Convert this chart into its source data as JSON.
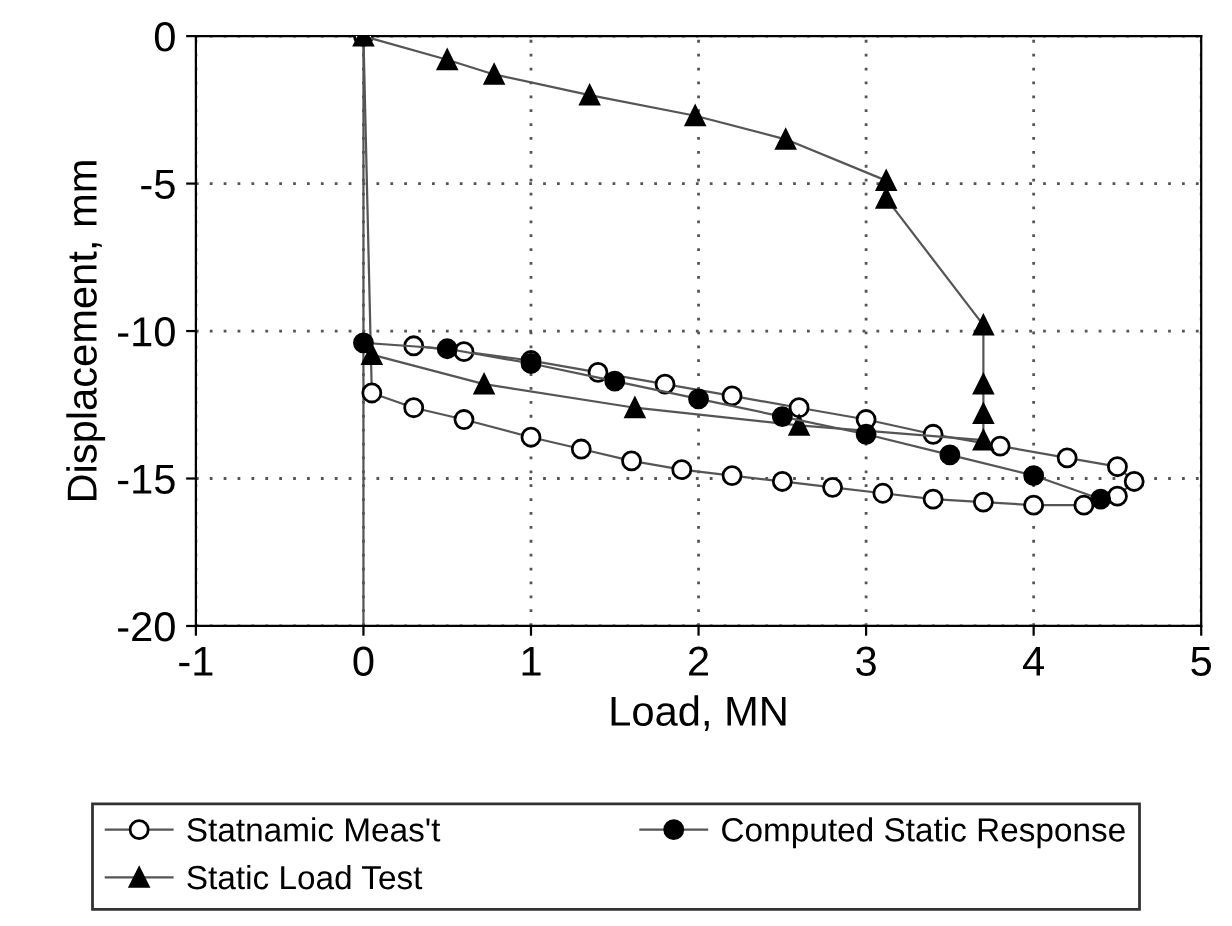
{
  "chart_data": {
    "type": "line",
    "xlabel": "Load, MN",
    "ylabel": "Displacement, mm",
    "xlim": [
      -1,
      5
    ],
    "xticks": [
      -1,
      0,
      1,
      2,
      3,
      4,
      5
    ],
    "ylim": [
      -20,
      0
    ],
    "yticks": [
      -20,
      -15,
      -10,
      -5,
      0
    ],
    "grid": true,
    "legend": "bottom",
    "series": [
      {
        "name": "Statnamic Meas't",
        "color": "#ffffff",
        "marker": "circle",
        "x": [
          0,
          0.05,
          0.3,
          0.6,
          1.0,
          1.3,
          1.6,
          1.9,
          2.2,
          2.5,
          2.8,
          3.1,
          3.4,
          3.7,
          4.0,
          4.3,
          4.5,
          4.6,
          4.5,
          4.2,
          3.8,
          3.4,
          3.0,
          2.6,
          2.2,
          1.8,
          1.4,
          1.0,
          0.6,
          0.3
        ],
        "values": [
          0,
          -12.1,
          -12.6,
          -13.0,
          -13.6,
          -14.0,
          -14.4,
          -14.7,
          -14.9,
          -15.1,
          -15.3,
          -15.5,
          -15.7,
          -15.8,
          -15.9,
          -15.9,
          -15.6,
          -15.1,
          -14.6,
          -14.3,
          -13.9,
          -13.5,
          -13.0,
          -12.6,
          -12.2,
          -11.8,
          -11.4,
          -11.0,
          -10.7,
          -10.5
        ]
      },
      {
        "name": "Static Load Test",
        "color": "#000000",
        "marker": "triangle",
        "x": [
          0,
          0.5,
          0.78,
          1.35,
          1.98,
          2.52,
          3.12,
          3.12,
          3.7,
          3.7,
          3.7,
          3.7,
          2.6,
          1.62,
          0.72,
          0.05
        ],
        "values": [
          0,
          -0.8,
          -1.3,
          -2.0,
          -2.7,
          -3.5,
          -4.9,
          -5.5,
          -9.8,
          -11.8,
          -12.8,
          -13.7,
          -13.2,
          -12.6,
          -11.8,
          -10.8
        ]
      },
      {
        "name": "Computed Static Response",
        "color": "#000000",
        "marker": "circle",
        "x": [
          0,
          0.5,
          1.0,
          1.5,
          2.0,
          2.5,
          3.0,
          3.5,
          4.0,
          4.4
        ],
        "values": [
          -10.4,
          -10.6,
          -11.1,
          -11.7,
          -12.3,
          -12.9,
          -13.5,
          -14.2,
          -14.9,
          -15.7
        ]
      }
    ]
  }
}
